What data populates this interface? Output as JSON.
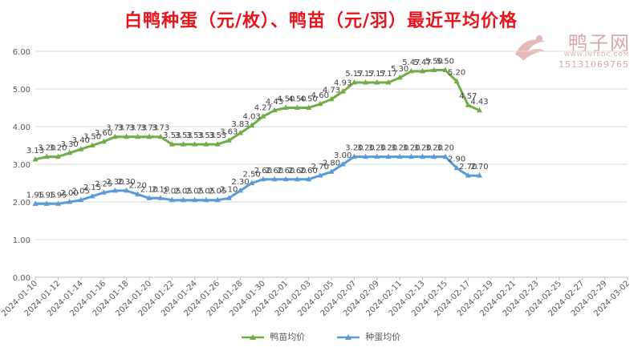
{
  "chart_data": {
    "type": "line",
    "title": "白鸭种蛋（元/枚）、鸭苗（元/羽）最近平均价格",
    "watermark": {
      "name": "鸭子网",
      "url": "WWW.INTEDC.COM",
      "phone": "15131069765"
    },
    "ylim": [
      0,
      6
    ],
    "yticks": [
      "0.00",
      "1.00",
      "2.00",
      "3.00",
      "4.00",
      "5.00",
      "6.00"
    ],
    "xticks": [
      "2024-01-10",
      "2024-01-12",
      "2024-01-14",
      "2024-01-16",
      "2024-01-18",
      "2024-01-20",
      "2024-01-22",
      "2024-01-24",
      "2024-01-26",
      "2024-01-28",
      "2024-01-30",
      "2024-02-01",
      "2024-02-03",
      "2024-02-05",
      "2024-02-07",
      "2024-02-09",
      "2024-02-11",
      "2024-02-13",
      "2024-02-15",
      "2024-02-17",
      "2024-02-19",
      "2024-02-21",
      "2024-02-23",
      "2024-02-25",
      "2024-02-27",
      "2024-02-29",
      "2024-03-02"
    ],
    "x": [
      "2024-01-10",
      "2024-01-11",
      "2024-01-12",
      "2024-01-13",
      "2024-01-14",
      "2024-01-15",
      "2024-01-16",
      "2024-01-17",
      "2024-01-18",
      "2024-01-19",
      "2024-01-20",
      "2024-01-21",
      "2024-01-22",
      "2024-01-23",
      "2024-01-24",
      "2024-01-25",
      "2024-01-26",
      "2024-01-27",
      "2024-01-28",
      "2024-01-29",
      "2024-01-30",
      "2024-01-31",
      "2024-02-01",
      "2024-02-02",
      "2024-02-03",
      "2024-02-04",
      "2024-02-05",
      "2024-02-06",
      "2024-02-07",
      "2024-02-08",
      "2024-02-09",
      "2024-02-10",
      "2024-02-11",
      "2024-02-12",
      "2024-02-13",
      "2024-02-14",
      "2024-02-15",
      "2024-02-16",
      "2024-02-17",
      "2024-02-18"
    ],
    "series": [
      {
        "name": "鸭苗均价",
        "color": "#70ad47",
        "marker": "triangle",
        "values": [
          3.13,
          3.2,
          3.2,
          3.3,
          3.4,
          3.5,
          3.6,
          3.73,
          3.73,
          3.73,
          3.73,
          3.73,
          3.53,
          3.53,
          3.53,
          3.53,
          3.53,
          3.63,
          3.83,
          4.03,
          4.27,
          4.43,
          4.5,
          4.5,
          4.5,
          4.6,
          4.73,
          4.93,
          5.17,
          5.17,
          5.17,
          5.17,
          5.3,
          5.47,
          5.47,
          5.5,
          5.5,
          5.2,
          4.57,
          4.43
        ],
        "labels": [
          "3.13",
          "3.20",
          "3.20",
          "3.30",
          "3.40",
          "3.50",
          "3.60",
          "3.73",
          "3.73",
          "3.73",
          "3.73",
          "3.73",
          "3.53",
          "3.53",
          "3.53",
          "3.53",
          "3.53",
          "3.63",
          "3.83",
          "4.03",
          "4.27",
          "4.43",
          "4.50",
          "4.50",
          "4.50",
          "4.60",
          "4.73",
          "4.93",
          "5.17",
          "5.17",
          "5.17",
          "5.17",
          "5.30",
          "5.47",
          "5.47",
          "5.50",
          "5.50",
          "5.20",
          "4.57",
          "4.43"
        ]
      },
      {
        "name": "种蛋均价",
        "color": "#5b9bd5",
        "marker": "triangle",
        "values": [
          1.95,
          1.95,
          1.95,
          2.0,
          2.05,
          2.15,
          2.25,
          2.3,
          2.3,
          2.2,
          2.1,
          2.1,
          2.05,
          2.05,
          2.05,
          2.05,
          2.05,
          2.1,
          2.3,
          2.5,
          2.6,
          2.6,
          2.6,
          2.6,
          2.6,
          2.7,
          2.8,
          3.0,
          3.2,
          3.2,
          3.2,
          3.2,
          3.2,
          3.2,
          3.2,
          3.2,
          3.2,
          2.9,
          2.7,
          2.7
        ],
        "labels": [
          "1.95",
          "1.95",
          "1.95",
          "2.00",
          "2.05",
          "2.15",
          "2.25",
          "2.30",
          "2.30",
          "2.20",
          "2.10",
          "2.10",
          "2.05",
          "2.05",
          "2.05",
          "2.05",
          "2.05",
          "2.10",
          "2.30",
          "2.50",
          "2.60",
          "2.60",
          "2.60",
          "2.60",
          "2.60",
          "2.70",
          "2.80",
          "3.00",
          "3.20",
          "3.20",
          "3.20",
          "3.20",
          "3.20",
          "3.20",
          "3.20",
          "3.20",
          "3.20",
          "2.90",
          "2.70",
          "2.70"
        ]
      }
    ],
    "grid": true,
    "legend": "bottom"
  }
}
